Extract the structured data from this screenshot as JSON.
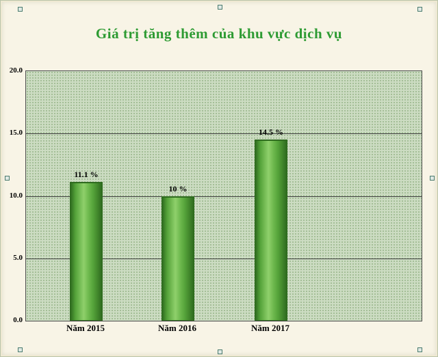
{
  "chart_data": {
    "type": "bar",
    "title": "Giá trị tăng thêm của khu vực dịch vụ",
    "categories": [
      "Năm 2015",
      "Năm 2016",
      "Năm 2017"
    ],
    "values": [
      11.1,
      10,
      14.5
    ],
    "data_labels": [
      "11.1 %",
      "10 %",
      "14.5 %"
    ],
    "xlabel": "",
    "ylabel": "",
    "ylim": [
      0,
      20
    ],
    "yticks": [
      0,
      5,
      10,
      15,
      20
    ],
    "ytick_labels": [
      "0.0",
      "5.0",
      "10.0",
      "15.0",
      "20.0"
    ],
    "grid": true,
    "legend_position": "none",
    "colors": {
      "title": "#2e9b33",
      "bar_main": "#55a33a",
      "bar_edge": "#2e6b1e",
      "bar_highlight": "#8fd06b",
      "plot_background": "#ccdcc2",
      "plot_dots": "#9db98f",
      "frame_background": "#f8f4e6",
      "label_text": "#000000"
    }
  }
}
